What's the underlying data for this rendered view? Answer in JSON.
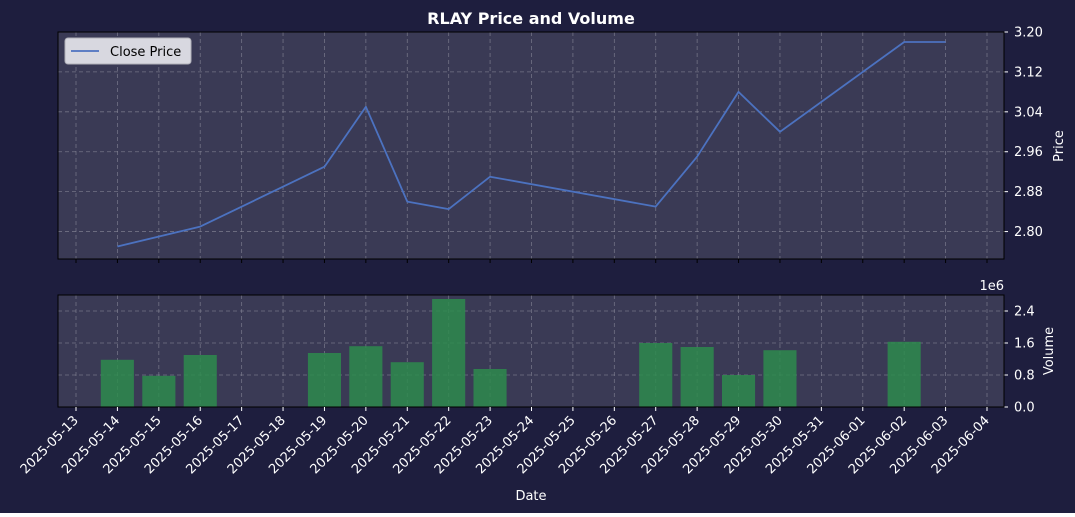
{
  "colors": {
    "figure_bg": "#1e1e3e",
    "axes_bg": "#3a3a55",
    "grid": "#8a8a9a",
    "text": "#ffffff",
    "price_line": "#4c72c0",
    "volume_bar": "#2e8b4e"
  },
  "chart_data": [
    {
      "type": "line",
      "title": "RLAY Price and Volume",
      "ylabel": "Price",
      "ylim": [
        2.745,
        3.2
      ],
      "yticks": [
        "2.80",
        "2.88",
        "2.96",
        "3.04",
        "3.12",
        "3.20"
      ],
      "grid": true,
      "legend": "top-left",
      "series": [
        {
          "name": "Close Price",
          "x": [
            "2025-05-14",
            "2025-05-16",
            "2025-05-18",
            "2025-05-19",
            "2025-05-20",
            "2025-05-21",
            "2025-05-22",
            "2025-05-23",
            "2025-05-27",
            "2025-05-28",
            "2025-05-29",
            "2025-05-30",
            "2025-06-02",
            "2025-06-03"
          ],
          "values": [
            2.77,
            2.81,
            2.89,
            2.93,
            3.05,
            2.86,
            2.845,
            2.91,
            2.85,
            2.95,
            3.08,
            3.0,
            3.18,
            3.18
          ]
        }
      ]
    },
    {
      "type": "bar",
      "xlabel": "Date",
      "ylabel": "Volume",
      "y_multiplier": "1e6",
      "ylim": [
        0,
        2.8
      ],
      "yticks": [
        "0.0",
        "0.8",
        "1.6",
        "2.4"
      ],
      "grid": true,
      "categories": [
        "2025-05-14",
        "2025-05-15",
        "2025-05-16",
        "2025-05-19",
        "2025-05-20",
        "2025-05-21",
        "2025-05-22",
        "2025-05-23",
        "2025-05-27",
        "2025-05-28",
        "2025-05-29",
        "2025-05-30",
        "2025-06-02"
      ],
      "values": [
        1.18,
        0.78,
        1.3,
        1.35,
        1.52,
        1.12,
        2.7,
        0.95,
        1.6,
        1.5,
        0.8,
        1.42,
        1.63
      ],
      "xticks": [
        "2025-05-13",
        "2025-05-14",
        "2025-05-15",
        "2025-05-16",
        "2025-05-17",
        "2025-05-18",
        "2025-05-19",
        "2025-05-20",
        "2025-05-21",
        "2025-05-22",
        "2025-05-23",
        "2025-05-24",
        "2025-05-25",
        "2025-05-26",
        "2025-05-27",
        "2025-05-28",
        "2025-05-29",
        "2025-05-30",
        "2025-05-31",
        "2025-06-01",
        "2025-06-02",
        "2025-06-03",
        "2025-06-04"
      ]
    }
  ]
}
